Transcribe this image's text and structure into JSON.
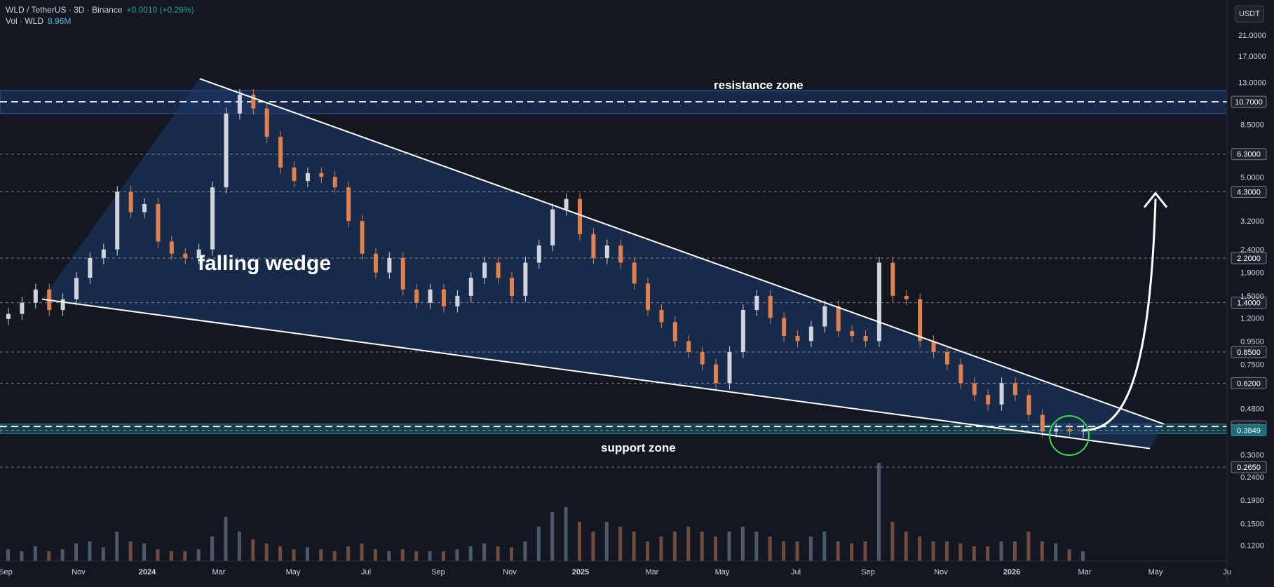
{
  "header": {
    "symbol": "WLD / TetherUS · 3D · Binance",
    "change": "+0.0010 (+0.26%)",
    "vol_label": "Vol · WLD",
    "vol_value": "8.96M"
  },
  "currency_button": "USDT",
  "colors": {
    "background": "#131722",
    "up": "#d1d4dc",
    "down": "#e0804f",
    "wedge_fill": "#1d3a6b",
    "zone_fill": "#1f3f7a",
    "support_zone_fill": "#1f6f78",
    "line": "#ffffff",
    "highlight_circle": "#3ddc4c"
  },
  "chart_data": {
    "type": "candlestick",
    "scale": "log",
    "ylim": [
      0.11,
      26
    ],
    "x_axis_labels": [
      "Sep",
      "Nov",
      "2024",
      "Mar",
      "May",
      "Jul",
      "Sep",
      "Nov",
      "2025",
      "Mar",
      "May",
      "Jul",
      "Sep",
      "Nov",
      "2026",
      "Mar",
      "May",
      "Ju"
    ],
    "y_axis_ticks": [
      "21.0000",
      "17.0000",
      "13.0000",
      "8.5000",
      "5.0000",
      "3.2000",
      "2.4000",
      "1.9000",
      "1.5000",
      "1.2000",
      "0.9500",
      "0.7500",
      "0.4800",
      "0.3000",
      "0.2400",
      "0.1900",
      "0.1500",
      "0.1200"
    ],
    "level_labels": [
      "10.7000",
      "6.3000",
      "4.3000",
      "2.2000",
      "1.4000",
      "0.8500",
      "0.6200",
      "0.4000",
      "0.3849",
      "0.2650"
    ],
    "current_price": "0.3849",
    "annotations": {
      "resistance": "resistance zone",
      "support": "support zone",
      "pattern": "falling wedge"
    },
    "closes": [
      1.25,
      1.4,
      1.6,
      1.3,
      1.45,
      1.8,
      2.2,
      2.4,
      4.3,
      3.5,
      3.8,
      2.6,
      2.3,
      2.2,
      2.4,
      4.5,
      9.5,
      11.5,
      10.0,
      7.5,
      5.5,
      4.8,
      5.2,
      5.0,
      4.5,
      3.2,
      2.3,
      1.9,
      2.2,
      1.6,
      1.4,
      1.6,
      1.35,
      1.5,
      1.8,
      2.1,
      1.8,
      1.5,
      2.1,
      2.5,
      3.6,
      4.0,
      2.8,
      2.2,
      2.5,
      2.1,
      1.7,
      1.3,
      1.15,
      0.95,
      0.85,
      0.75,
      0.62,
      0.85,
      1.3,
      1.5,
      1.2,
      1.0,
      0.95,
      1.1,
      1.35,
      1.05,
      1.0,
      0.95,
      2.1,
      1.5,
      1.45,
      0.95,
      0.85,
      0.75,
      0.62,
      0.55,
      0.5,
      0.62,
      0.55,
      0.45,
      0.38,
      0.39,
      0.38,
      0.385
    ],
    "volume": [
      0.12,
      0.1,
      0.15,
      0.1,
      0.12,
      0.18,
      0.2,
      0.14,
      0.3,
      0.2,
      0.18,
      0.12,
      0.1,
      0.1,
      0.12,
      0.25,
      0.45,
      0.3,
      0.22,
      0.18,
      0.15,
      0.12,
      0.14,
      0.12,
      0.1,
      0.15,
      0.18,
      0.12,
      0.1,
      0.12,
      0.1,
      0.1,
      0.1,
      0.12,
      0.15,
      0.18,
      0.15,
      0.14,
      0.2,
      0.35,
      0.5,
      0.55,
      0.4,
      0.3,
      0.4,
      0.35,
      0.3,
      0.2,
      0.25,
      0.3,
      0.35,
      0.3,
      0.25,
      0.3,
      0.35,
      0.3,
      0.25,
      0.2,
      0.2,
      0.25,
      0.3,
      0.2,
      0.18,
      0.2,
      1.0,
      0.4,
      0.3,
      0.25,
      0.2,
      0.2,
      0.18,
      0.15,
      0.15,
      0.2,
      0.2,
      0.3,
      0.2,
      0.18,
      0.12,
      0.1
    ]
  }
}
